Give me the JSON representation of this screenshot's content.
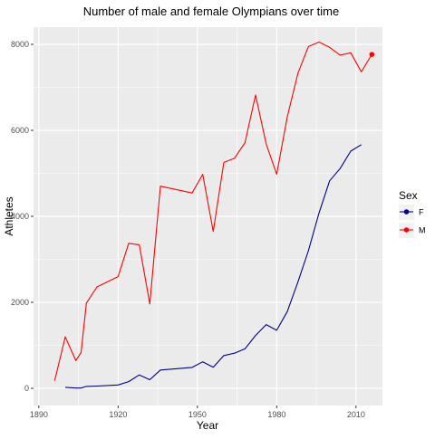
{
  "chart_data": {
    "type": "line",
    "title": "Number of male and female Olympians over time",
    "xlabel": "Year",
    "ylabel": "Athletes",
    "xlim": [
      1888,
      2020
    ],
    "ylim": [
      -400,
      8400
    ],
    "x_ticks": [
      1890,
      1920,
      1950,
      1980,
      2010
    ],
    "y_ticks": [
      0,
      2000,
      4000,
      6000,
      8000
    ],
    "grid": true,
    "legend_title": "Sex",
    "legend_position": "right",
    "series": [
      {
        "name": "F",
        "color": "#00008b",
        "x": [
          1900,
          1904,
          1906,
          1908,
          1912,
          1920,
          1924,
          1928,
          1932,
          1936,
          1948,
          1952,
          1956,
          1960,
          1964,
          1968,
          1972,
          1976,
          1980,
          1984,
          1988,
          1992,
          1996,
          2000,
          2004,
          2008,
          2012
        ],
        "y": [
          23,
          6,
          6,
          44,
          53,
          78,
          156,
          312,
          201,
          426,
          486,
          617,
          490,
          763,
          817,
          918,
          1229,
          1483,
          1349,
          1785,
          2469,
          3199,
          4075,
          4825,
          5112,
          5516,
          5668
        ]
      },
      {
        "name": "M",
        "color": "#ff0000",
        "x": [
          1896,
          1900,
          1904,
          1906,
          1908,
          1912,
          1920,
          1924,
          1928,
          1932,
          1936,
          1948,
          1952,
          1956,
          1960,
          1964,
          1968,
          1972,
          1976,
          1980,
          1984,
          1988,
          1992,
          1996,
          2000,
          2004,
          2008,
          2012,
          2016
        ],
        "y": [
          176,
          1198,
          644,
          835,
          1980,
          2358,
          2598,
          3372,
          3340,
          1962,
          4701,
          4544,
          4976,
          3648,
          5254,
          5349,
          5712,
          6821,
          5687,
          4979,
          6313,
          7325,
          7949,
          8053,
          7931,
          7749,
          7805,
          7359,
          7766
        ]
      }
    ]
  }
}
